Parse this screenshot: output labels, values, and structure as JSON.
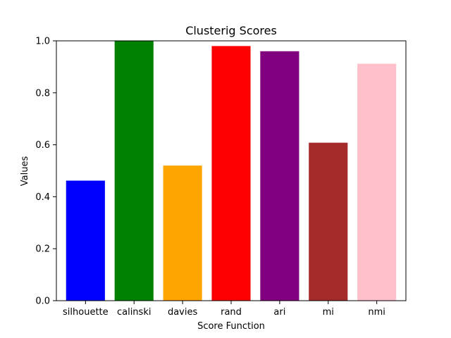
{
  "chart_data": {
    "type": "bar",
    "title": "Clusterig Scores",
    "xlabel": "Score Function",
    "ylabel": "Values",
    "categories": [
      "silhouette",
      "calinski",
      "davies",
      "rand",
      "ari",
      "mi",
      "nmi"
    ],
    "values": [
      0.462,
      1.0,
      0.52,
      0.98,
      0.96,
      0.608,
      0.912
    ],
    "colors": [
      "#0000ff",
      "#008000",
      "#ffa500",
      "#ff0000",
      "#800080",
      "#a52a2a",
      "#ffc0cb"
    ],
    "ylim": [
      0,
      1.0
    ],
    "yticks": [
      "0.0",
      "0.2",
      "0.4",
      "0.6",
      "0.8",
      "1.0"
    ],
    "grid": false,
    "legend": false
  }
}
